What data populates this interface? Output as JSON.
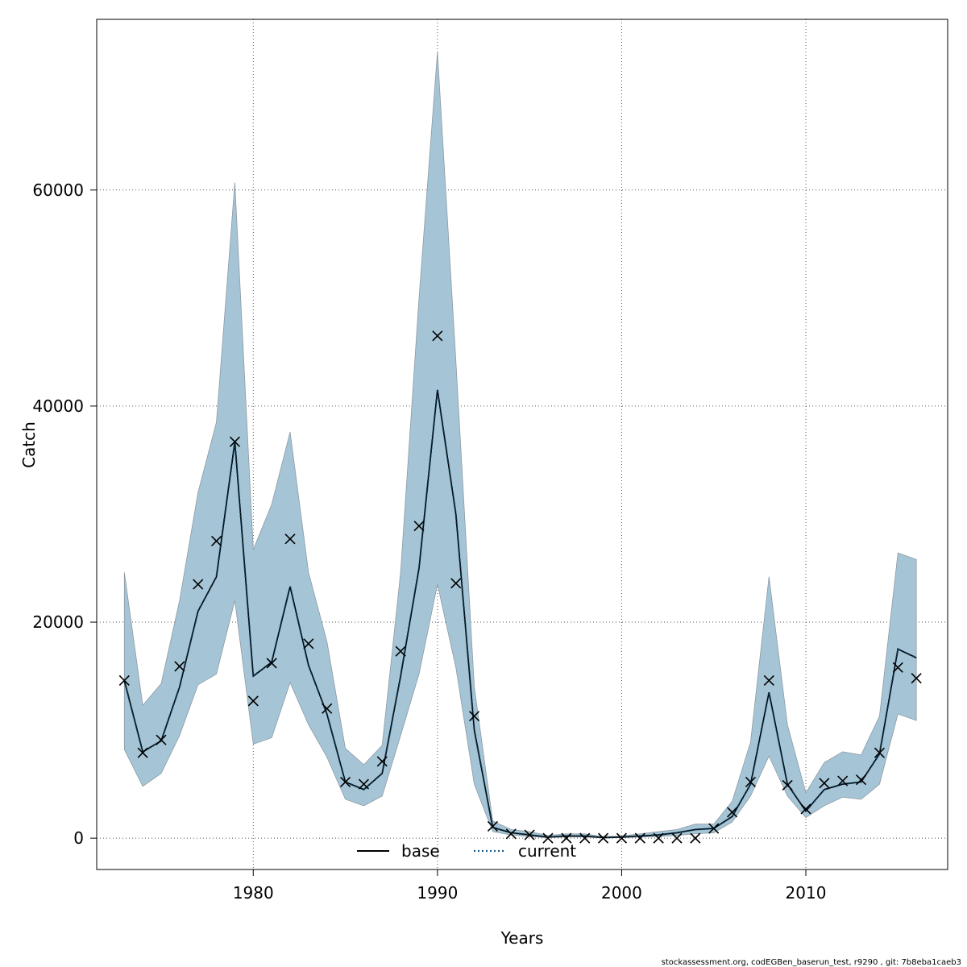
{
  "chart_data": {
    "type": "line",
    "xlabel": "Years",
    "ylabel": "Catch",
    "xlim": [
      1971.5,
      2017.7
    ],
    "ylim": [
      -2900,
      75800
    ],
    "x_ticks": [
      1980,
      1990,
      2000,
      2010
    ],
    "y_ticks": [
      0,
      20000,
      40000,
      60000
    ],
    "x_tick_labels": [
      "1980",
      "1990",
      "2000",
      "2010"
    ],
    "y_tick_labels": [
      "0",
      "20000",
      "40000",
      "60000"
    ],
    "grid": true,
    "legend_position": "bottom-center",
    "colors": {
      "band_fill": "#a5c5d6",
      "band_edge": "#8c9aa4",
      "current_line": "#0a3a5a",
      "base_line": "#000000",
      "observed_marker": "#000000",
      "grid": "#555555"
    },
    "years": [
      1973,
      1974,
      1975,
      1976,
      1977,
      1978,
      1979,
      1980,
      1981,
      1982,
      1983,
      1984,
      1985,
      1986,
      1987,
      1988,
      1989,
      1990,
      1991,
      1992,
      1993,
      1994,
      1995,
      1996,
      1997,
      1998,
      1999,
      2000,
      2001,
      2002,
      2003,
      2004,
      2005,
      2006,
      2007,
      2008,
      2009,
      2010,
      2011,
      2012,
      2013,
      2014,
      2015,
      2016
    ],
    "series": [
      {
        "name": "base",
        "style": "solid",
        "values": [
          14600,
          8000,
          9000,
          14000,
          21000,
          24200,
          36700,
          15000,
          16300,
          23300,
          16000,
          11500,
          5200,
          4500,
          6000,
          15000,
          25000,
          41500,
          30000,
          10000,
          1000,
          500,
          300,
          100,
          200,
          200,
          50,
          100,
          200,
          300,
          500,
          800,
          900,
          2000,
          5000,
          13500,
          5000,
          2500,
          4500,
          5000,
          5200,
          7800,
          17500,
          16700
        ]
      },
      {
        "name": "current",
        "style": "dotted",
        "values": [
          14600,
          8000,
          9000,
          14000,
          21000,
          24200,
          36700,
          15000,
          16300,
          23300,
          16000,
          11500,
          5200,
          4500,
          6000,
          15000,
          25000,
          41500,
          30000,
          10000,
          1000,
          500,
          300,
          100,
          200,
          200,
          50,
          100,
          200,
          300,
          500,
          800,
          900,
          2000,
          5000,
          13500,
          5000,
          2500,
          4500,
          5000,
          5200,
          7800,
          17500,
          16700
        ]
      }
    ],
    "confidence_band": {
      "lower": [
        8200,
        4800,
        6000,
        9500,
        14200,
        15200,
        22000,
        8700,
        9300,
        14400,
        10500,
        7500,
        3600,
        3000,
        3900,
        9500,
        15200,
        23500,
        15800,
        5000,
        600,
        300,
        150,
        50,
        100,
        100,
        20,
        50,
        100,
        150,
        250,
        400,
        500,
        1500,
        3900,
        7600,
        3900,
        1900,
        3000,
        3800,
        3600,
        5000,
        11500,
        10900
      ],
      "upper": [
        24600,
        12300,
        14300,
        22000,
        32000,
        38500,
        60700,
        26700,
        30900,
        37600,
        24600,
        18200,
        8300,
        6800,
        8600,
        24600,
        50000,
        72800,
        44200,
        14000,
        1600,
        800,
        600,
        250,
        400,
        400,
        150,
        200,
        400,
        600,
        800,
        1300,
        1300,
        3400,
        8900,
        24200,
        10500,
        4200,
        7000,
        8000,
        7700,
        11300,
        26400,
        25800
      ]
    },
    "observed": {
      "marker": "x",
      "values": [
        14600,
        7900,
        9100,
        15900,
        23500,
        27500,
        36700,
        12700,
        16200,
        27700,
        18000,
        12000,
        5200,
        5000,
        7100,
        17300,
        28900,
        46500,
        23600,
        11300,
        1100,
        400,
        300,
        0,
        0,
        0,
        0,
        0,
        0,
        0,
        0,
        0,
        900,
        2400,
        5200,
        14600,
        4900,
        2700,
        5100,
        5300,
        5400,
        7900,
        15800,
        14800
      ]
    },
    "footnote": "stockassessment.org, codEGBen_baserun_test, r9290 , git: 7b8eba1caeb3"
  }
}
